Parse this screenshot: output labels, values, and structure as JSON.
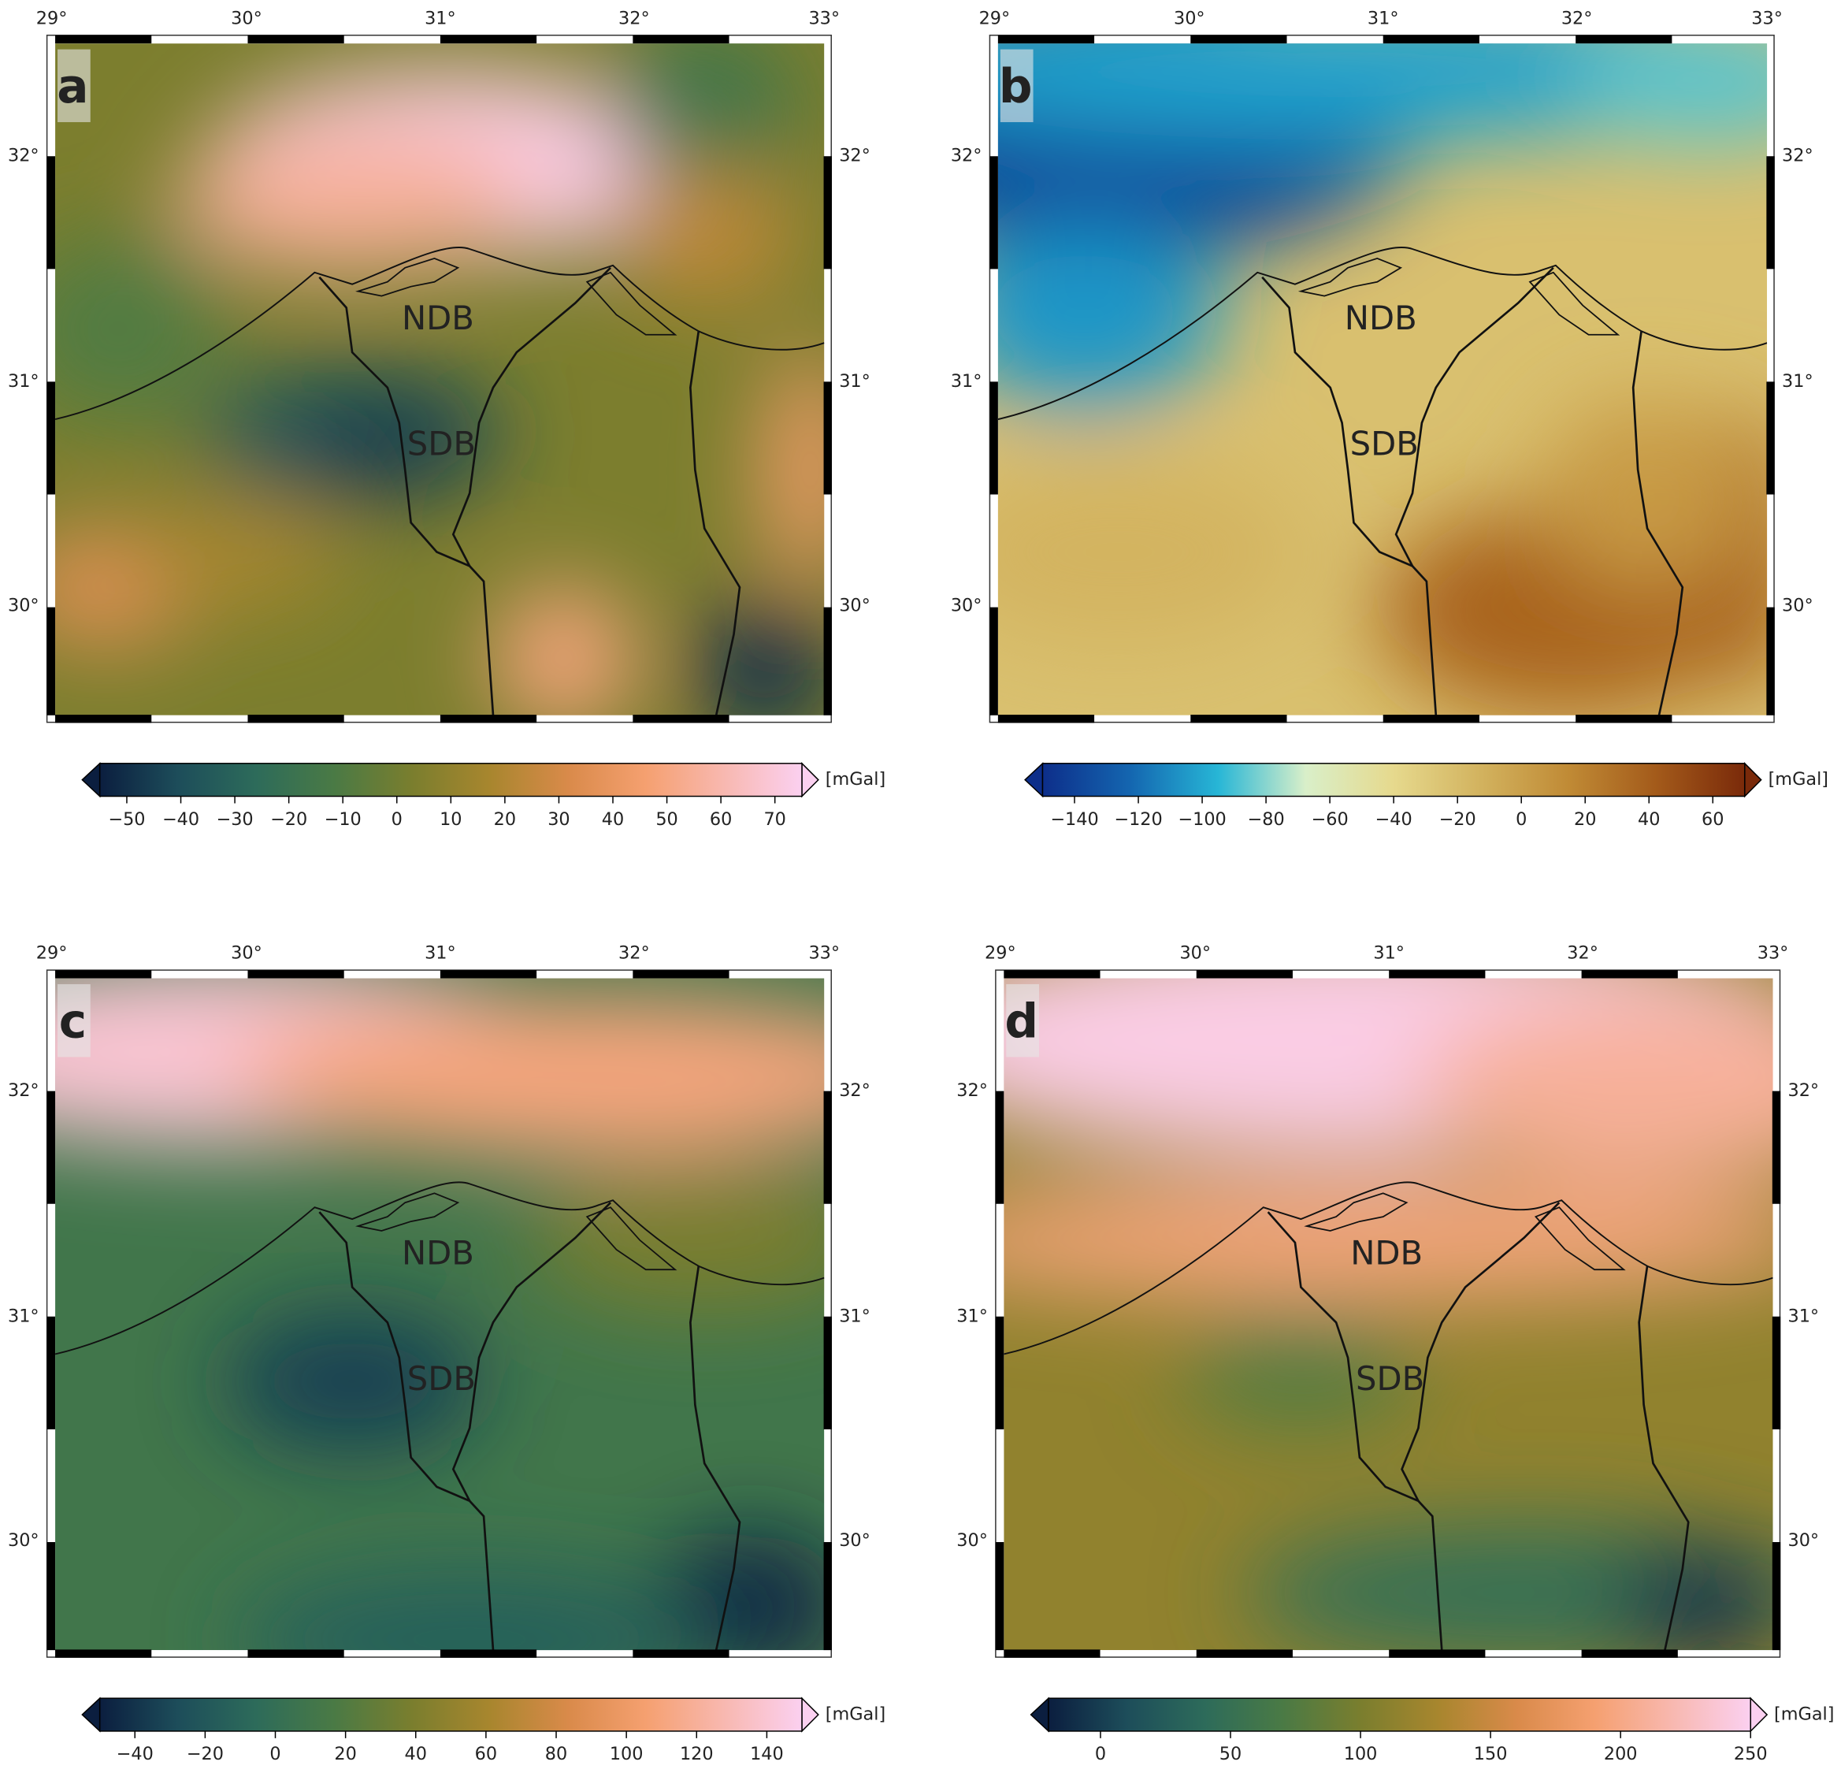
{
  "panels": [
    {
      "label": "a",
      "lon_labels": [
        "29°",
        "30°",
        "31°",
        "32°",
        "33°"
      ],
      "lat_labels": [
        "32°",
        "31°",
        "30°"
      ],
      "annotations": [
        "NDB",
        "SDB"
      ],
      "colorbar": {
        "unit": "[mGal]",
        "lim": [
          -55,
          75
        ],
        "ticks": [
          {
            "value": -50,
            "label": "−50"
          },
          {
            "value": -40,
            "label": "−40"
          },
          {
            "value": -30,
            "label": "−30"
          },
          {
            "value": -20,
            "label": "−20"
          },
          {
            "value": -10,
            "label": "−10"
          },
          0,
          10,
          20,
          30,
          40,
          50,
          60,
          70
        ],
        "colors": [
          "#0b1e3f",
          "#1d4d5a",
          "#2d6b5a",
          "#4a7a45",
          "#7a7e2e",
          "#a8862e",
          "#d98a4a",
          "#f5a070",
          "#f8b8b0",
          "#fbd0f0"
        ]
      }
    },
    {
      "label": "b",
      "lon_labels": [
        "29°",
        "30°",
        "31°",
        "32°",
        "33°"
      ],
      "lat_labels": [
        "32°",
        "31°",
        "30°"
      ],
      "annotations": [
        "NDB",
        "SDB"
      ],
      "colorbar": {
        "unit": "[mGal]",
        "lim": [
          -150,
          70
        ],
        "ticks": [
          {
            "value": -140,
            "label": "−140"
          },
          {
            "value": -120,
            "label": "−120"
          },
          {
            "value": -100,
            "label": "−100"
          },
          {
            "value": -80,
            "label": "−80"
          },
          {
            "value": -60,
            "label": "−60"
          },
          {
            "value": -40,
            "label": "−40"
          },
          {
            "value": -20,
            "label": "−20"
          },
          0,
          20,
          40,
          60
        ],
        "colors": [
          "#0d2e8a",
          "#1466b0",
          "#27b6d6",
          "#d9efc9",
          "#e6d98d",
          "#d2b25e",
          "#c08a35",
          "#a35a1a",
          "#7a2a0a"
        ]
      }
    },
    {
      "label": "c",
      "lon_labels": [
        "29°",
        "30°",
        "31°",
        "32°",
        "33°"
      ],
      "lat_labels": [
        "32°",
        "31°",
        "30°"
      ],
      "annotations": [
        "NDB",
        "SDB"
      ],
      "colorbar": {
        "unit": "[mGal]",
        "lim": [
          -50,
          150
        ],
        "ticks": [
          {
            "value": -40,
            "label": "−40"
          },
          {
            "value": -20,
            "label": "−20"
          },
          0,
          20,
          40,
          60,
          80,
          100,
          120,
          140
        ],
        "colors": [
          "#0b1e3f",
          "#1d4d5a",
          "#2d6b5a",
          "#4a7a45",
          "#7a7e2e",
          "#a8862e",
          "#d98a4a",
          "#f5a070",
          "#f8b8b0",
          "#fbd0f0"
        ]
      }
    },
    {
      "label": "d",
      "lon_labels": [
        "29°",
        "30°",
        "31°",
        "32°",
        "33°"
      ],
      "lat_labels": [
        "32°",
        "31°",
        "30°"
      ],
      "annotations": [
        "NDB",
        "SDB"
      ],
      "colorbar": {
        "unit": "[mGal]",
        "lim": [
          -20,
          250
        ],
        "ticks": [
          0,
          50,
          100,
          150,
          200,
          250
        ],
        "colors": [
          "#0b1e3f",
          "#1d4d5a",
          "#2d6b5a",
          "#4a7a45",
          "#7a7e2e",
          "#a8862e",
          "#d98a4a",
          "#f5a070",
          "#f8b8b0",
          "#fbd0f0"
        ]
      }
    }
  ]
}
